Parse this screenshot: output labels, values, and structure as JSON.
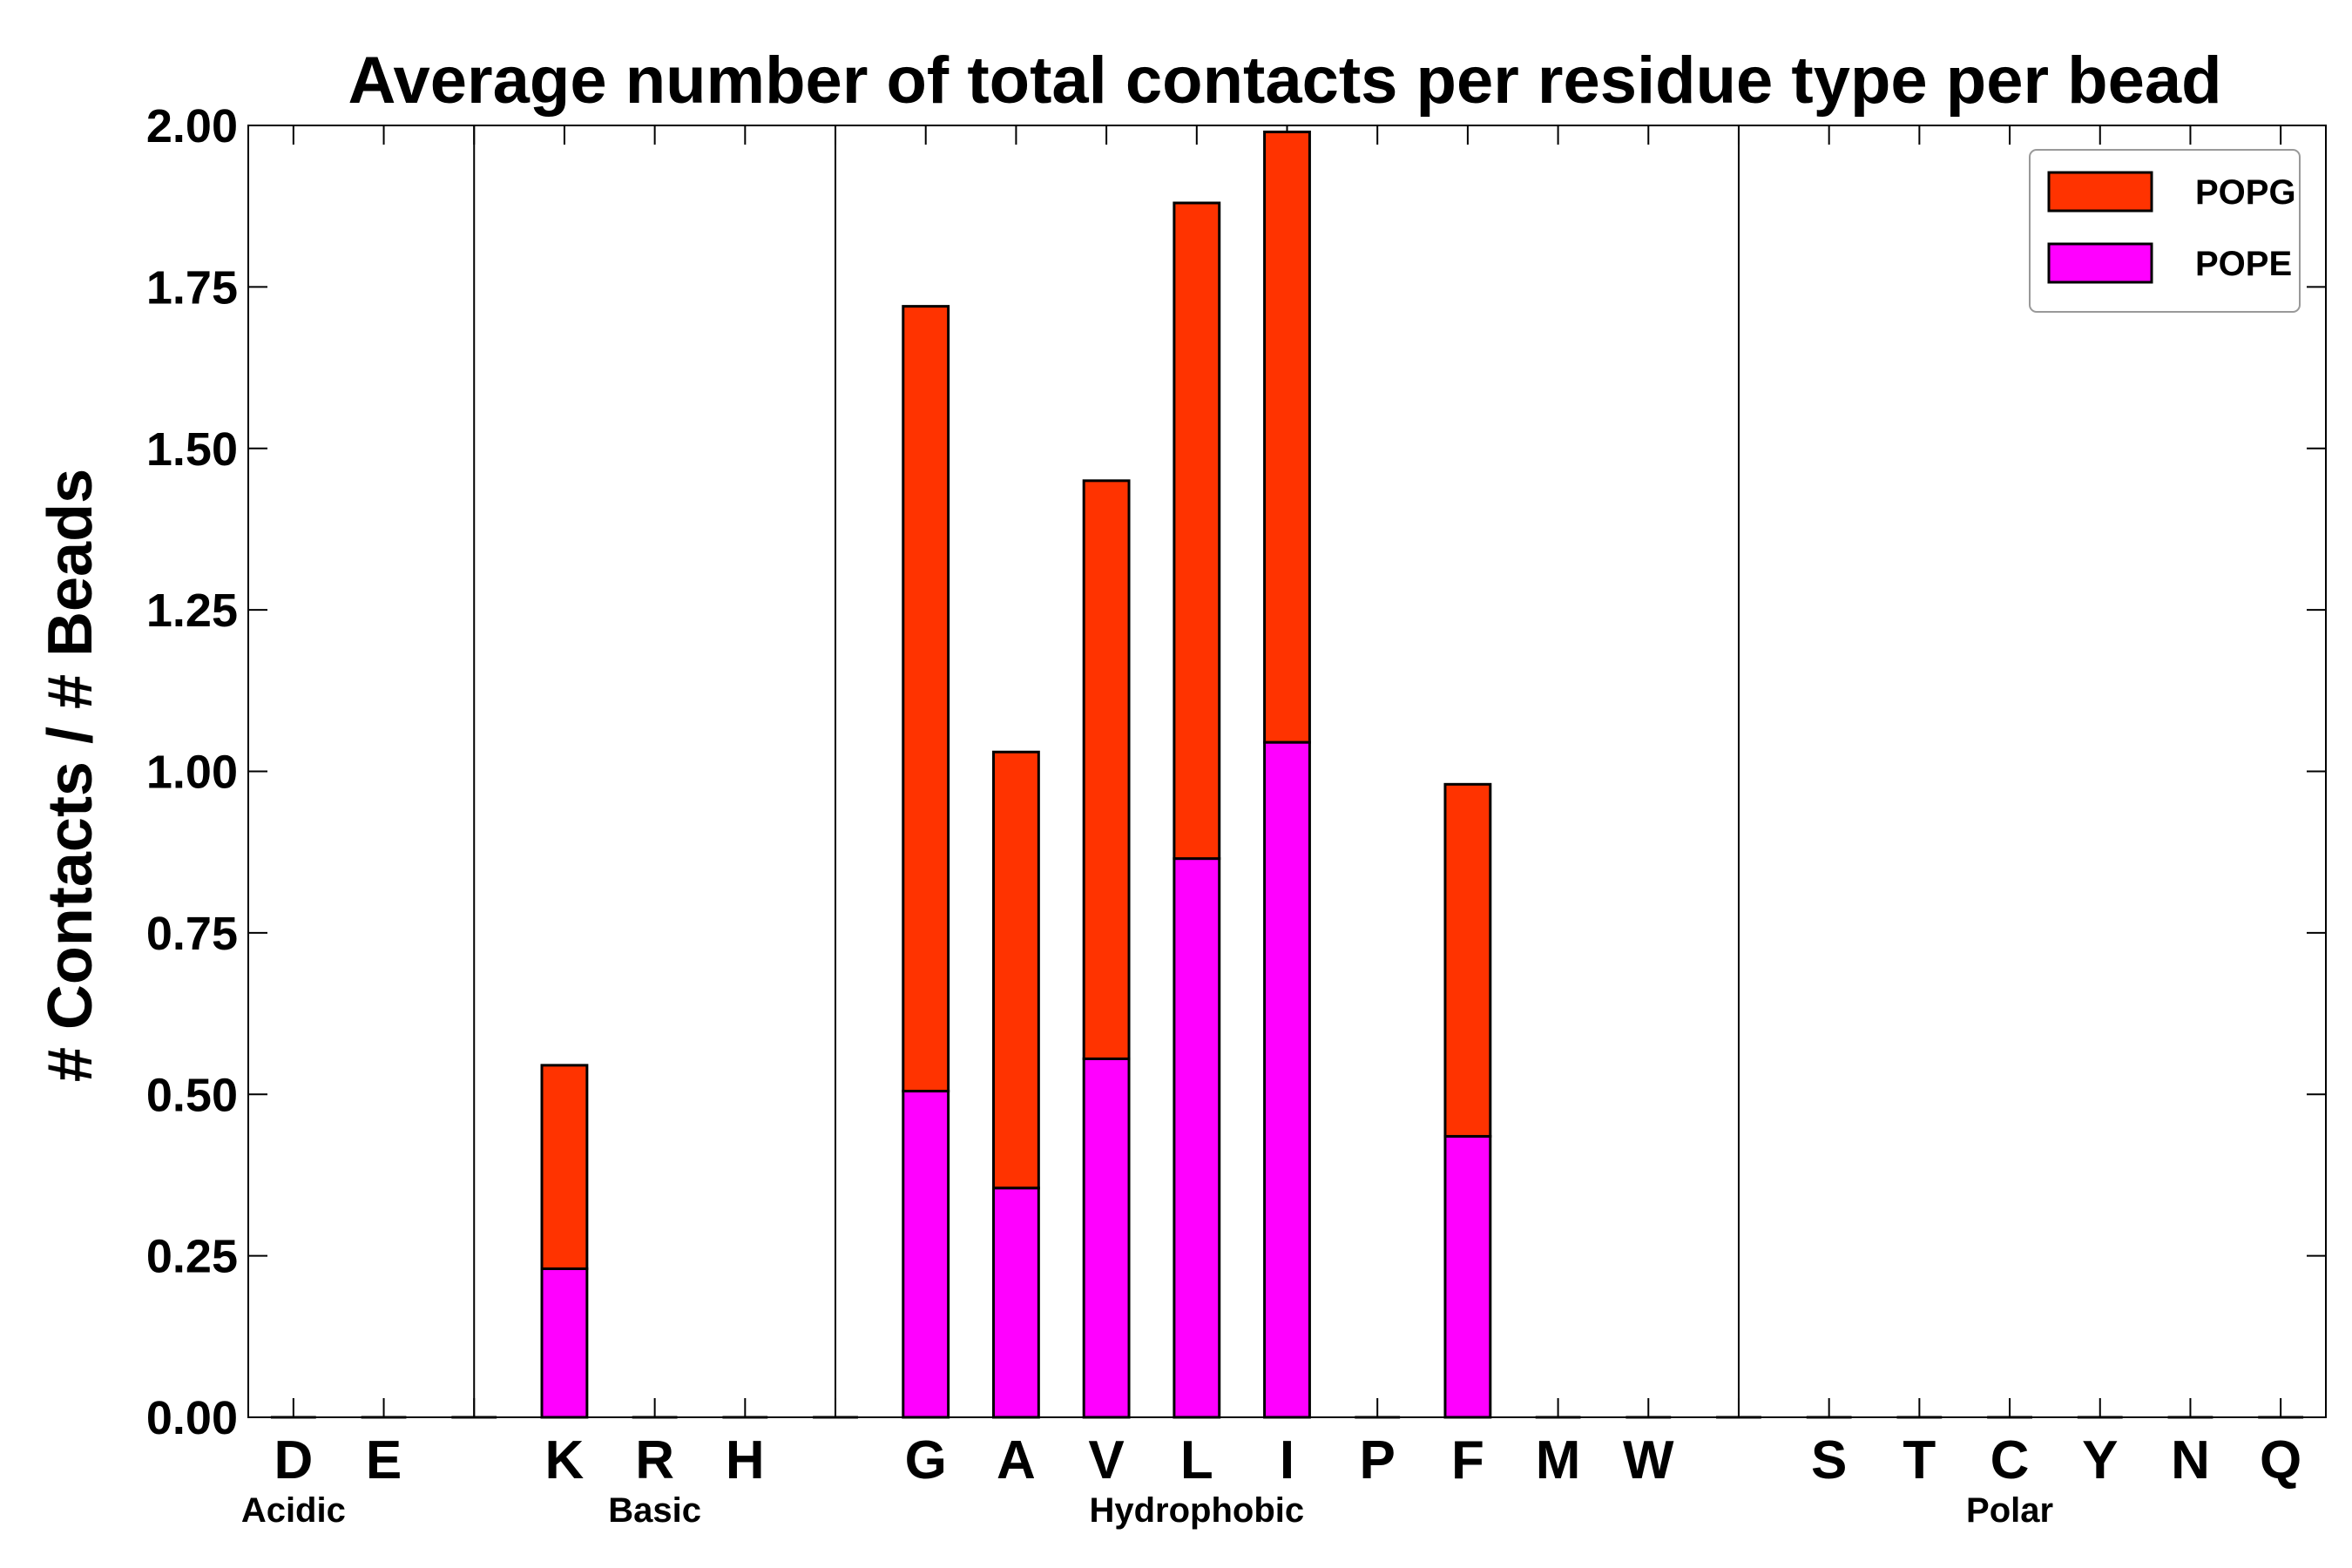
{
  "chart_data": {
    "type": "bar",
    "stacked": true,
    "title": "Average number of total contacts per residue type per bead",
    "xlabel": "",
    "ylabel": "# Contacts / # Beads",
    "ylim": [
      0,
      2.0
    ],
    "yticks": [
      "0.00",
      "0.25",
      "0.50",
      "0.75",
      "1.00",
      "1.25",
      "1.50",
      "1.75",
      "2.00"
    ],
    "grid": false,
    "legend_position": "top-right",
    "categories": [
      "D",
      "E",
      "",
      "K",
      "R",
      "H",
      "",
      "G",
      "A",
      "V",
      "L",
      "I",
      "P",
      "F",
      "M",
      "W",
      "",
      "S",
      "T",
      "C",
      "Y",
      "N",
      "Q"
    ],
    "series": [
      {
        "name": "POPE",
        "color": "#ff00ff",
        "values": [
          0,
          0,
          0,
          0.23,
          0,
          0,
          0,
          0.505,
          0.355,
          0.555,
          0.865,
          1.045,
          0,
          0.435,
          0,
          0,
          0,
          0,
          0,
          0,
          0,
          0,
          0
        ]
      },
      {
        "name": "POPG",
        "color": "#ff3300",
        "values": [
          0,
          0,
          0,
          0.315,
          0,
          0,
          0,
          1.215,
          0.675,
          0.895,
          1.015,
          0.945,
          0,
          0.545,
          0,
          0,
          0,
          0,
          0,
          0,
          0,
          0,
          0
        ]
      }
    ],
    "legend_order": [
      "POPG",
      "POPE"
    ],
    "group_labels": [
      {
        "label": "Acidic",
        "under": "D"
      },
      {
        "label": "Basic",
        "under": "R"
      },
      {
        "label": "Hydrophobic",
        "under": "L"
      },
      {
        "label": "Polar",
        "under": "C"
      }
    ],
    "separators_after_index": [
      2,
      6,
      16
    ]
  }
}
